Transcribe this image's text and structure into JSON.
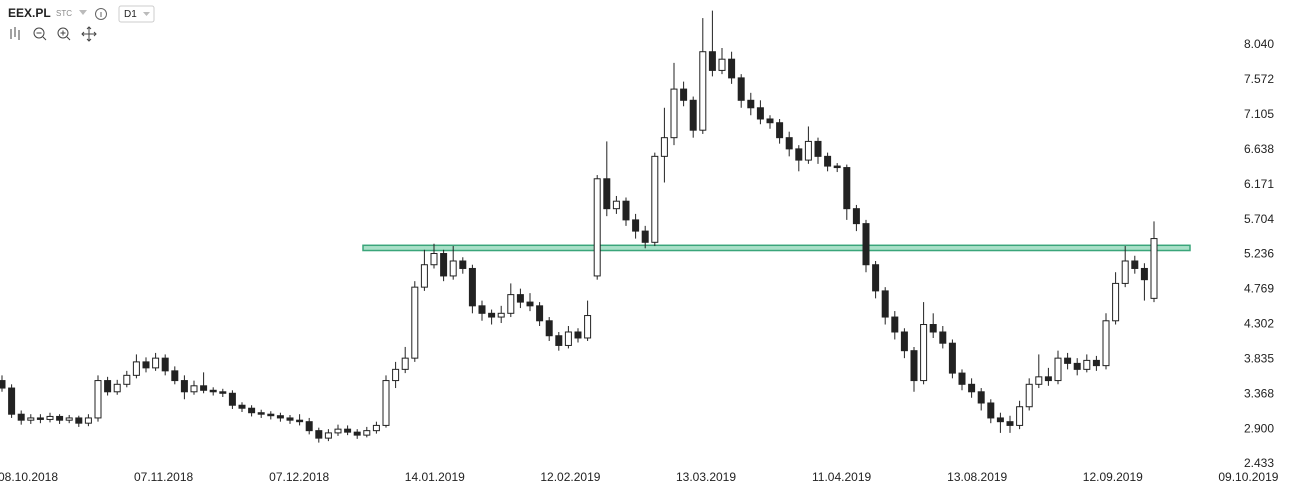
{
  "header": {
    "symbol": "EEX.PL",
    "tag": "STC",
    "interval": "D1"
  },
  "chart_data": {
    "type": "candlestick",
    "open": [
      3.55,
      3.45,
      3.1,
      3.02,
      3.05,
      3.03,
      3.07,
      3.02,
      3.05,
      2.98,
      3.05,
      3.55,
      3.4,
      3.5,
      3.62,
      3.8,
      3.72,
      3.85,
      3.68,
      3.55,
      3.4,
      3.48,
      3.42,
      3.4,
      3.38,
      3.22,
      3.18,
      3.12,
      3.1,
      3.08,
      3.05,
      3.02,
      3.0,
      2.88,
      2.78,
      2.85,
      2.9,
      2.86,
      2.82,
      2.88,
      2.95,
      3.55,
      3.7,
      3.85,
      4.8,
      5.1,
      5.25,
      4.95,
      5.15,
      5.05,
      4.55,
      4.45,
      4.4,
      4.45,
      4.7,
      4.6,
      4.55,
      4.35,
      4.15,
      4.02,
      4.2,
      4.12,
      4.95,
      6.25,
      5.85,
      5.95,
      5.7,
      5.55,
      5.4,
      6.55,
      6.8,
      7.45,
      7.3,
      6.9,
      7.95,
      7.7,
      7.85,
      7.6,
      7.3,
      7.2,
      7.05,
      7.0,
      6.8,
      6.65,
      6.5,
      6.75,
      6.55,
      6.42,
      6.4,
      5.85,
      5.65,
      5.1,
      4.75,
      4.4,
      4.2,
      3.95,
      3.55,
      4.3,
      4.2,
      4.05,
      3.65,
      3.5,
      3.4,
      3.25,
      3.05,
      3.0,
      2.95,
      3.2,
      3.5,
      3.6,
      3.55,
      3.85,
      3.78,
      3.7,
      3.82,
      3.75,
      4.35,
      4.85,
      5.15,
      5.05,
      4.65
    ],
    "high": [
      3.62,
      3.5,
      3.15,
      3.1,
      3.1,
      3.12,
      3.1,
      3.09,
      3.08,
      3.1,
      3.62,
      3.6,
      3.56,
      3.68,
      3.9,
      3.86,
      3.92,
      3.9,
      3.74,
      3.62,
      3.55,
      3.66,
      3.46,
      3.44,
      3.42,
      3.26,
      3.22,
      3.16,
      3.14,
      3.12,
      3.09,
      3.1,
      3.05,
      2.92,
      2.9,
      2.96,
      2.95,
      2.9,
      2.93,
      3.0,
      3.62,
      3.8,
      4.0,
      4.88,
      5.3,
      5.38,
      5.3,
      5.35,
      5.2,
      5.1,
      4.62,
      4.5,
      4.55,
      4.85,
      4.78,
      4.72,
      4.6,
      4.4,
      4.2,
      4.28,
      4.25,
      4.62,
      6.3,
      6.75,
      6.02,
      6.0,
      5.78,
      5.62,
      6.6,
      7.2,
      7.8,
      7.55,
      7.35,
      8.4,
      8.5,
      8.0,
      7.95,
      7.65,
      7.4,
      7.3,
      7.1,
      7.05,
      6.88,
      6.7,
      6.95,
      6.8,
      6.6,
      6.46,
      6.44,
      5.9,
      5.7,
      5.15,
      4.8,
      4.48,
      4.25,
      4.0,
      4.6,
      4.45,
      4.28,
      4.1,
      3.7,
      3.58,
      3.45,
      3.3,
      3.12,
      3.08,
      3.28,
      3.58,
      3.9,
      3.72,
      3.95,
      3.92,
      3.85,
      3.9,
      3.88,
      4.45,
      5.0,
      5.35,
      5.22,
      5.12,
      5.68
    ],
    "low": [
      3.4,
      3.05,
      2.96,
      2.97,
      2.98,
      2.99,
      2.97,
      2.98,
      2.93,
      2.94,
      3.0,
      3.35,
      3.36,
      3.46,
      3.58,
      3.66,
      3.68,
      3.62,
      3.5,
      3.3,
      3.36,
      3.38,
      3.35,
      3.33,
      3.17,
      3.13,
      3.07,
      3.05,
      3.03,
      3.0,
      2.97,
      2.95,
      2.83,
      2.72,
      2.74,
      2.81,
      2.82,
      2.77,
      2.79,
      2.84,
      2.92,
      3.45,
      3.65,
      3.8,
      4.75,
      5.05,
      4.88,
      4.9,
      4.98,
      4.45,
      4.35,
      4.3,
      4.32,
      4.4,
      4.52,
      4.48,
      4.28,
      4.08,
      3.95,
      3.98,
      4.06,
      4.08,
      4.9,
      5.75,
      5.78,
      5.62,
      5.45,
      5.32,
      5.35,
      6.2,
      6.7,
      7.22,
      6.8,
      6.85,
      7.62,
      7.65,
      7.52,
      7.2,
      7.1,
      6.98,
      6.92,
      6.72,
      6.55,
      6.35,
      6.45,
      6.45,
      6.35,
      6.34,
      5.7,
      5.55,
      5.0,
      4.65,
      4.3,
      4.1,
      3.85,
      3.4,
      3.5,
      4.12,
      3.98,
      3.58,
      3.42,
      3.32,
      3.15,
      2.98,
      2.85,
      2.85,
      2.9,
      3.15,
      3.45,
      3.48,
      3.5,
      3.7,
      3.62,
      3.66,
      3.68,
      3.7,
      4.3,
      4.8,
      4.98,
      4.62,
      4.6
    ],
    "close": [
      3.45,
      3.1,
      3.02,
      3.05,
      3.03,
      3.07,
      3.02,
      3.05,
      2.98,
      3.05,
      3.55,
      3.4,
      3.5,
      3.62,
      3.8,
      3.72,
      3.85,
      3.68,
      3.55,
      3.4,
      3.48,
      3.42,
      3.4,
      3.38,
      3.22,
      3.18,
      3.12,
      3.1,
      3.08,
      3.05,
      3.02,
      3.0,
      2.88,
      2.78,
      2.85,
      2.9,
      2.86,
      2.82,
      2.88,
      2.95,
      3.55,
      3.7,
      3.85,
      4.8,
      5.1,
      5.25,
      4.95,
      5.15,
      5.05,
      4.55,
      4.45,
      4.4,
      4.45,
      4.7,
      4.6,
      4.55,
      4.35,
      4.15,
      4.02,
      4.2,
      4.12,
      4.42,
      6.25,
      5.85,
      5.95,
      5.7,
      5.55,
      5.4,
      6.55,
      6.8,
      7.45,
      7.3,
      6.9,
      7.95,
      7.7,
      7.85,
      7.6,
      7.3,
      7.2,
      7.05,
      7.0,
      6.8,
      6.65,
      6.5,
      6.75,
      6.55,
      6.42,
      6.4,
      5.85,
      5.65,
      5.1,
      4.75,
      4.4,
      4.2,
      3.95,
      3.55,
      4.3,
      4.2,
      4.05,
      3.65,
      3.5,
      3.4,
      3.25,
      3.05,
      3.0,
      2.95,
      3.2,
      3.5,
      3.6,
      3.55,
      3.85,
      3.78,
      3.7,
      3.82,
      3.75,
      4.35,
      4.85,
      5.15,
      5.05,
      4.9,
      5.45
    ],
    "xticks": [
      "08.10.2018",
      "07.11.2018",
      "07.12.2018",
      "14.01.2019",
      "12.02.2019",
      "13.03.2019",
      "11.04.2019",
      "13.08.2019",
      "12.09.2019",
      "09.10.2019"
    ],
    "ylim": [
      2.407,
      8.642
    ],
    "yticks": [
      {
        "value": 2.433,
        "label": "2.433"
      },
      {
        "value": 2.9,
        "label": "2.900"
      },
      {
        "value": 3.368,
        "label": "3.368"
      },
      {
        "value": 3.835,
        "label": "3.835"
      },
      {
        "value": 4.302,
        "label": "4.302"
      },
      {
        "value": 4.769,
        "label": "4.769"
      },
      {
        "value": 5.236,
        "label": "5.236"
      },
      {
        "value": 5.704,
        "label": "5.704"
      },
      {
        "value": 6.171,
        "label": "6.171"
      },
      {
        "value": 6.638,
        "label": "6.638"
      },
      {
        "value": 7.105,
        "label": "7.105"
      },
      {
        "value": 7.572,
        "label": "7.572"
      },
      {
        "value": 8.04,
        "label": "8.040"
      }
    ],
    "zone": {
      "low": 5.29,
      "high": 5.36,
      "color": "#a9e0c8",
      "edge": "#3aa57a"
    },
    "up_color": "#ffffff",
    "down_color": "#222222"
  }
}
